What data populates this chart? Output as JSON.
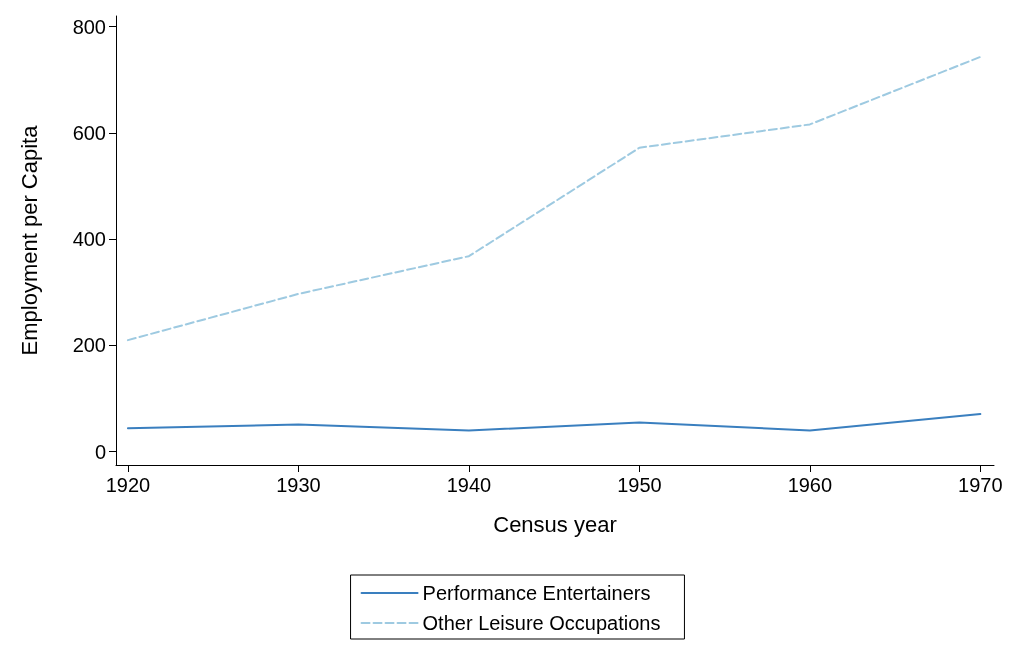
{
  "chart_data": {
    "type": "line",
    "xlabel": "Census year",
    "ylabel": "Employment per Capita",
    "x": [
      1920,
      1930,
      1940,
      1950,
      1960,
      1970
    ],
    "series": [
      {
        "name": "Performance Entertainers",
        "color": "#3a7fbf",
        "line_style": "solid",
        "values": [
          44,
          51,
          40,
          55,
          40,
          71
        ]
      },
      {
        "name": "Other Leisure Occupations",
        "color": "#9ecae1",
        "line_style": "dashed",
        "values": [
          210,
          297,
          368,
          572,
          616,
          743
        ]
      }
    ],
    "xlim": [
      1919.3,
      1970.8
    ],
    "xticks": [
      1920,
      1930,
      1940,
      1950,
      1960,
      1970
    ],
    "ylim": [
      -25,
      820
    ],
    "yticks": [
      0,
      200,
      400,
      600,
      800
    ],
    "grid": false,
    "legend": "bottom",
    "marker": "none"
  }
}
